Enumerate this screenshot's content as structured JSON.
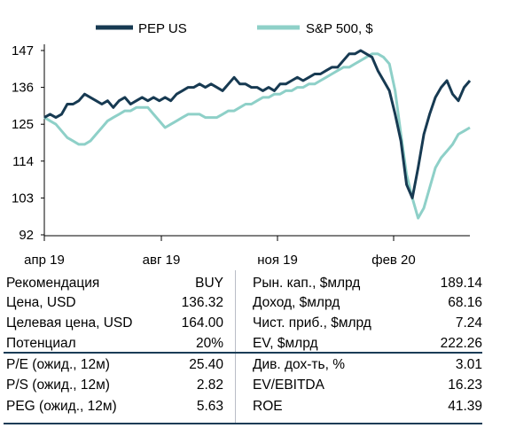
{
  "chart_data": {
    "type": "line",
    "x_ticks": [
      "апр 19",
      "авг 19",
      "ноя 19",
      "фев 20"
    ],
    "y_ticks": [
      92,
      103,
      114,
      125,
      136,
      147
    ],
    "ylim": [
      92,
      150
    ],
    "legend_position": "top",
    "series": [
      {
        "name": "PEP US",
        "color": "#173a52",
        "values": [
          127,
          128,
          127,
          128,
          131,
          131,
          132,
          134,
          133,
          132,
          131,
          132,
          130,
          132,
          133,
          131,
          132,
          133,
          132,
          133,
          132,
          133,
          132,
          134,
          135,
          136,
          136,
          137,
          136,
          137,
          136,
          135,
          137,
          139,
          137,
          137,
          136,
          136,
          135,
          136,
          135,
          137,
          137,
          138,
          139,
          138,
          139,
          140,
          140,
          141,
          142,
          142,
          144,
          146,
          146,
          147,
          146,
          145,
          141,
          138,
          135,
          128,
          120,
          107,
          103,
          112,
          122,
          128,
          133,
          136,
          138,
          134,
          132,
          136,
          138
        ]
      },
      {
        "name": "S&P 500, $",
        "color": "#8ed0c8",
        "values": [
          127,
          126,
          125,
          123,
          121,
          120,
          119,
          119,
          120,
          122,
          124,
          126,
          127,
          128,
          129,
          129,
          130,
          130,
          130,
          128,
          126,
          124,
          125,
          126,
          127,
          128,
          128,
          128,
          127,
          127,
          127,
          128,
          129,
          129,
          130,
          131,
          131,
          132,
          133,
          133,
          134,
          134,
          135,
          135,
          136,
          136,
          137,
          137,
          138,
          139,
          140,
          141,
          142,
          142,
          143,
          144,
          145,
          146,
          146,
          145,
          143,
          135,
          122,
          110,
          103,
          97,
          100,
          106,
          112,
          115,
          117,
          119,
          122,
          123,
          124
        ]
      }
    ]
  },
  "stats_left": [
    {
      "label": "Рекомендация",
      "value": "BUY"
    },
    {
      "label": "Цена, USD",
      "value": "136.32"
    },
    {
      "label": "Целевая цена, USD",
      "value": "164.00"
    },
    {
      "label": "Потенциал",
      "value": "20%"
    },
    {
      "label": "P/E (ожид., 12м)",
      "value": "25.40"
    },
    {
      "label": "P/S (ожид., 12м)",
      "value": "2.82"
    },
    {
      "label": "PEG (ожид., 12м)",
      "value": "5.63"
    }
  ],
  "stats_right": [
    {
      "label": "Рын. кап., $млрд",
      "value": "189.14"
    },
    {
      "label": "Доход, $млрд",
      "value": "68.16"
    },
    {
      "label": "Чист. приб., $млрд",
      "value": "7.24"
    },
    {
      "label": "EV, $млрд",
      "value": "222.26"
    },
    {
      "label": "Див. дох-ть, %",
      "value": "3.01"
    },
    {
      "label": "EV/EBITDA",
      "value": "16.23"
    },
    {
      "label": "ROE",
      "value": "41.39"
    }
  ]
}
